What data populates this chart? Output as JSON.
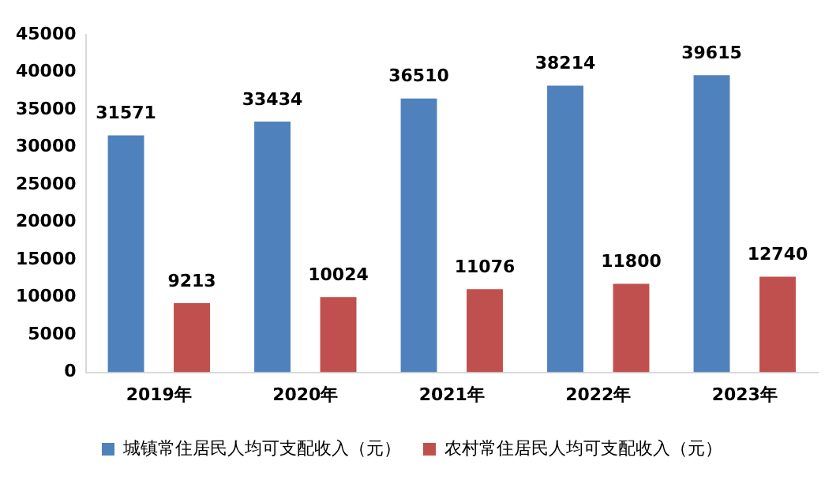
{
  "chart_data": {
    "type": "bar",
    "categories": [
      "2019年",
      "2020年",
      "2021年",
      "2022年",
      "2023年"
    ],
    "series": [
      {
        "name": "城镇常住居民人均可支配收入（元）",
        "color": "#4f81bd",
        "values": [
          31571,
          33434,
          36510,
          38214,
          39615
        ]
      },
      {
        "name": "农村常住居民人均可支配收入（元）",
        "color": "#c0504d",
        "values": [
          9213,
          10024,
          11076,
          11800,
          12740
        ]
      }
    ],
    "ylim": [
      0,
      45000
    ],
    "yticks": [
      0,
      5000,
      10000,
      15000,
      20000,
      25000,
      30000,
      35000,
      40000,
      45000
    ],
    "grid": false,
    "legend": "bottom",
    "data_labels": true
  }
}
